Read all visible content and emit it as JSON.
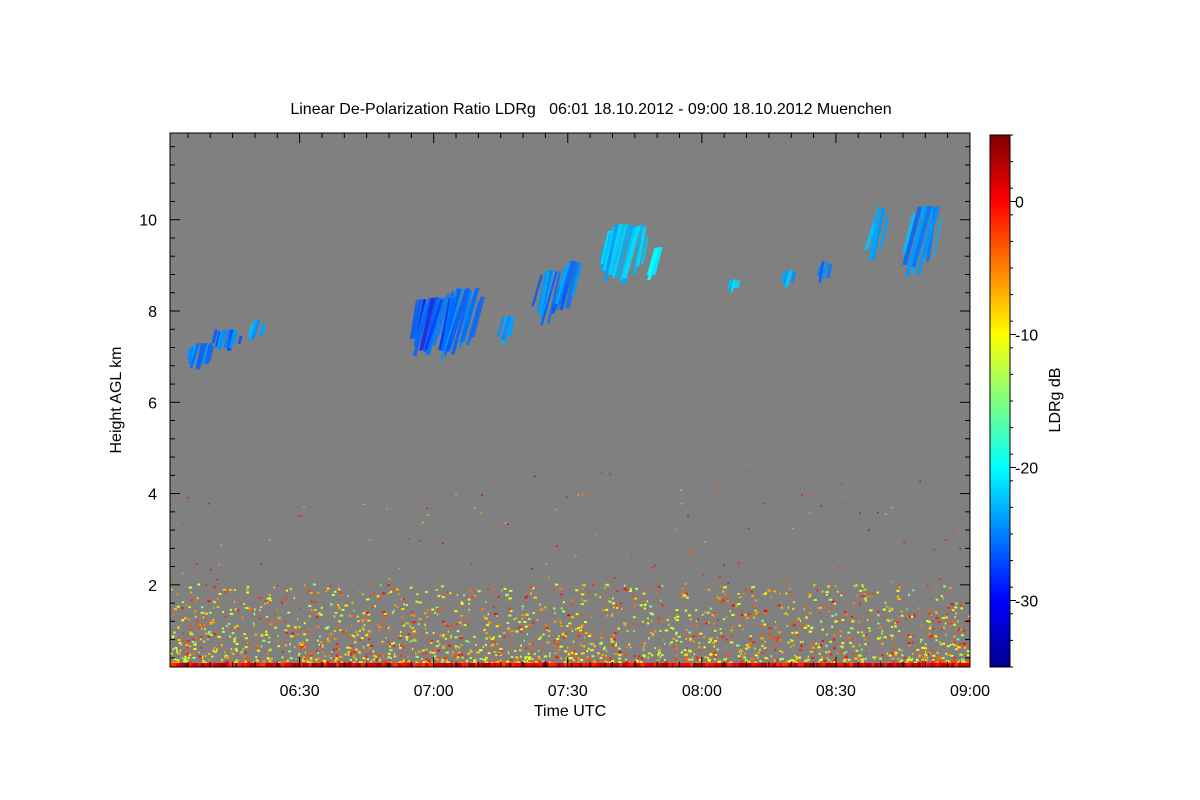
{
  "chart_data": {
    "type": "heatmap",
    "title": "Linear De-Polarization Ratio LDRg   06:01 18.10.2012 - 09:00 18.10.2012 Muenchen",
    "xlabel": "Time UTC",
    "ylabel": "Height AGL km",
    "colorbar_label": "LDRg dB",
    "x_range": [
      "06:01",
      "09:00"
    ],
    "x_ticks": [
      "06:30",
      "07:00",
      "07:30",
      "08:00",
      "08:30",
      "09:00"
    ],
    "y_range": [
      0.2,
      11.9
    ],
    "y_ticks": [
      2,
      4,
      6,
      8,
      10
    ],
    "color_range": [
      -35,
      5
    ],
    "color_ticks": [
      0,
      -10,
      -20,
      -30
    ],
    "colormap": "jet",
    "background_color": "#808080",
    "cloud_layers": [
      {
        "t_start": "06:05",
        "t_end": "06:11",
        "h_bottom": 6.7,
        "h_top": 7.3,
        "ldr": -25
      },
      {
        "t_start": "06:11",
        "t_end": "06:17",
        "h_bottom": 7.1,
        "h_top": 7.6,
        "ldr": -25
      },
      {
        "t_start": "06:19",
        "t_end": "06:22",
        "h_bottom": 7.3,
        "h_top": 7.8,
        "ldr": -23
      },
      {
        "t_start": "06:56",
        "t_end": "07:05",
        "h_bottom": 6.9,
        "h_top": 8.3,
        "ldr": -27
      },
      {
        "t_start": "07:02",
        "t_end": "07:11",
        "h_bottom": 6.8,
        "h_top": 8.5,
        "ldr": -26
      },
      {
        "t_start": "07:15",
        "t_end": "07:18",
        "h_bottom": 7.2,
        "h_top": 7.9,
        "ldr": -24
      },
      {
        "t_start": "07:24",
        "t_end": "07:30",
        "h_bottom": 7.6,
        "h_top": 8.9,
        "ldr": -25
      },
      {
        "t_start": "07:29",
        "t_end": "07:33",
        "h_bottom": 7.9,
        "h_top": 9.1,
        "ldr": -25
      },
      {
        "t_start": "07:38",
        "t_end": "07:48",
        "h_bottom": 8.5,
        "h_top": 9.9,
        "ldr": -22
      },
      {
        "t_start": "07:49",
        "t_end": "07:51",
        "h_bottom": 8.6,
        "h_top": 9.4,
        "ldr": -22
      },
      {
        "t_start": "08:06",
        "t_end": "08:08",
        "h_bottom": 8.4,
        "h_top": 8.7,
        "ldr": -23
      },
      {
        "t_start": "08:18",
        "t_end": "08:21",
        "h_bottom": 8.5,
        "h_top": 8.9,
        "ldr": -24
      },
      {
        "t_start": "08:26",
        "t_end": "08:29",
        "h_bottom": 8.6,
        "h_top": 9.1,
        "ldr": -25
      },
      {
        "t_start": "08:38",
        "t_end": "08:42",
        "h_bottom": 8.9,
        "h_top": 10.3,
        "ldr": -24
      },
      {
        "t_start": "08:47",
        "t_end": "08:54",
        "h_bottom": 8.6,
        "h_top": 10.3,
        "ldr": -24
      }
    ],
    "boundary_layer": {
      "h_bottom": 0.2,
      "h_top": 2.0,
      "ldr_range": [
        -15,
        0
      ],
      "note_level": "aerosol speckle"
    }
  }
}
